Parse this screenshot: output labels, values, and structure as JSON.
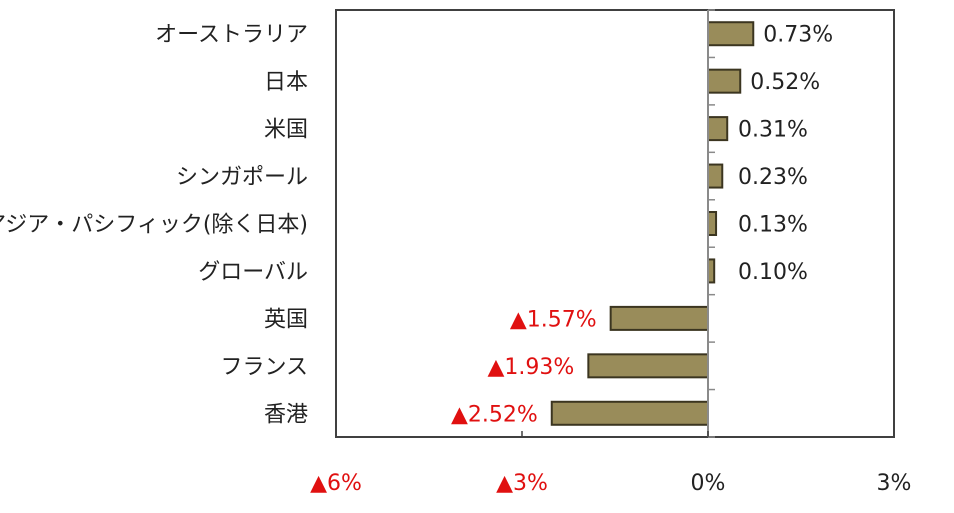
{
  "colors": {
    "bar_fill": "#998c5a",
    "bar_stroke": "#3b3520",
    "axis": "#8a8a8a",
    "frame": "#404040",
    "negative_text": "#e01010",
    "text": "#222222"
  },
  "chart_data": {
    "type": "bar",
    "orientation": "horizontal",
    "categories": [
      "オーストラリア",
      "日本",
      "米国",
      "シンガポール",
      "アジア・パシフィック(除く日本)",
      "グローバル",
      "英国",
      "フランス",
      "香港"
    ],
    "values": [
      0.73,
      0.52,
      0.31,
      0.23,
      0.13,
      0.1,
      -1.57,
      -1.93,
      -2.52
    ],
    "value_labels": [
      "0.73%",
      "0.52%",
      "0.31%",
      "0.23%",
      "0.13%",
      "0.10%",
      "▲1.57%",
      "▲1.93%",
      "▲2.52%"
    ],
    "xlim": [
      -6,
      3
    ],
    "x_ticks": [
      {
        "value": -6,
        "label": "▲6%"
      },
      {
        "value": -3,
        "label": "▲3%"
      },
      {
        "value": 0,
        "label": "0%"
      },
      {
        "value": 3,
        "label": "3%"
      }
    ],
    "grid": false,
    "legend": "none",
    "title": "",
    "xlabel": "",
    "ylabel": ""
  }
}
